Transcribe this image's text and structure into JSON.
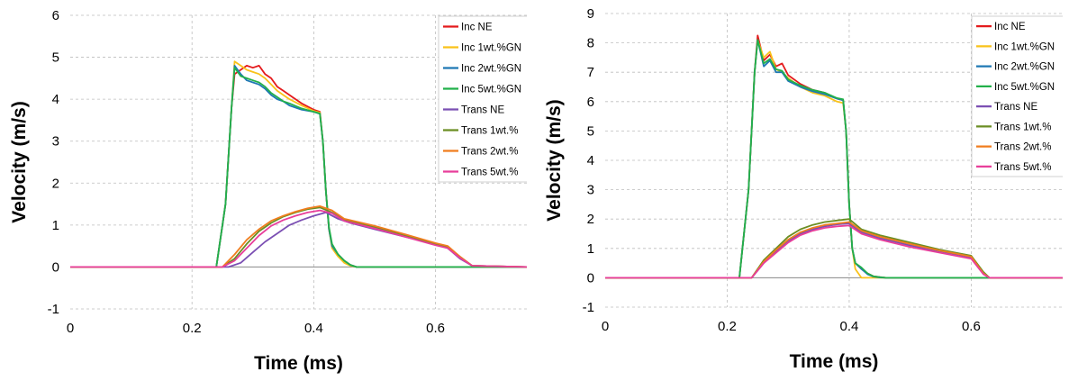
{
  "chart_data": [
    {
      "type": "line",
      "xlabel": "Time (ms)",
      "ylabel": "Velocity (m/s)",
      "xlim": [
        0,
        0.75
      ],
      "ylim": [
        -1,
        6
      ],
      "xticks": [
        0,
        0.2,
        0.4,
        0.6
      ],
      "xtick_labels": [
        "0",
        "0.2",
        "0.4",
        "0.6"
      ],
      "yticks": [
        -1,
        0,
        1,
        2,
        3,
        4,
        5,
        6
      ],
      "ytick_labels": [
        "-1",
        "0",
        "1",
        "2",
        "3",
        "4",
        "5",
        "6"
      ],
      "grid": true,
      "legend": "top-right",
      "legend_labels": [
        "Inc NE",
        "Inc 1wt.%GN",
        "Inc 2wt.%GN",
        "Inc 5wt.%GN",
        "Trans NE",
        "Trans 1wt.%",
        "Trans 2wt.%",
        "Trans 5wt.%"
      ],
      "series": [
        {
          "name": "Inc NE",
          "color": "#e41a1c",
          "x": [
            0,
            0.24,
            0.255,
            0.265,
            0.27,
            0.28,
            0.29,
            0.3,
            0.31,
            0.32,
            0.33,
            0.34,
            0.35,
            0.36,
            0.38,
            0.4,
            0.41,
            0.415,
            0.42,
            0.425,
            0.43,
            0.44,
            0.45,
            0.46,
            0.47,
            0.75
          ],
          "y": [
            0,
            0,
            1.5,
            3.8,
            4.6,
            4.7,
            4.8,
            4.75,
            4.8,
            4.6,
            4.5,
            4.3,
            4.2,
            4.1,
            3.9,
            3.75,
            3.7,
            3.0,
            1.8,
            0.9,
            0.5,
            0.3,
            0.15,
            0.05,
            0,
            0
          ]
        },
        {
          "name": "Inc 1wt.%GN",
          "color": "#f9c21a",
          "x": [
            0,
            0.24,
            0.255,
            0.265,
            0.27,
            0.28,
            0.29,
            0.3,
            0.31,
            0.32,
            0.33,
            0.34,
            0.35,
            0.36,
            0.38,
            0.4,
            0.41,
            0.415,
            0.42,
            0.425,
            0.43,
            0.44,
            0.45,
            0.46,
            0.47,
            0.75
          ],
          "y": [
            0,
            0,
            1.5,
            3.8,
            4.9,
            4.8,
            4.7,
            4.65,
            4.6,
            4.5,
            4.35,
            4.2,
            4.1,
            4.0,
            3.85,
            3.72,
            3.68,
            3.0,
            1.8,
            0.9,
            0.45,
            0.25,
            0.1,
            0.03,
            0,
            0
          ]
        },
        {
          "name": "Inc 2wt.%GN",
          "color": "#1f78b4",
          "x": [
            0,
            0.24,
            0.255,
            0.265,
            0.27,
            0.28,
            0.29,
            0.3,
            0.31,
            0.32,
            0.33,
            0.34,
            0.35,
            0.36,
            0.38,
            0.4,
            0.41,
            0.415,
            0.42,
            0.425,
            0.43,
            0.44,
            0.45,
            0.46,
            0.47,
            0.75
          ],
          "y": [
            0,
            0,
            1.5,
            3.8,
            4.8,
            4.6,
            4.45,
            4.4,
            4.35,
            4.25,
            4.1,
            4.0,
            3.95,
            3.85,
            3.75,
            3.7,
            3.65,
            3.0,
            1.8,
            0.9,
            0.5,
            0.3,
            0.15,
            0.05,
            0,
            0
          ]
        },
        {
          "name": "Inc 5wt.%GN",
          "color": "#22b04a",
          "x": [
            0,
            0.24,
            0.255,
            0.265,
            0.27,
            0.28,
            0.29,
            0.3,
            0.31,
            0.32,
            0.33,
            0.34,
            0.35,
            0.36,
            0.38,
            0.4,
            0.41,
            0.415,
            0.42,
            0.425,
            0.43,
            0.44,
            0.45,
            0.46,
            0.47,
            0.75
          ],
          "y": [
            0,
            0,
            1.5,
            3.8,
            4.75,
            4.55,
            4.5,
            4.45,
            4.4,
            4.3,
            4.15,
            4.05,
            3.95,
            3.9,
            3.78,
            3.7,
            3.66,
            3.0,
            1.8,
            0.95,
            0.55,
            0.3,
            0.15,
            0.05,
            0,
            0
          ]
        },
        {
          "name": "Trans NE",
          "color": "#7b4fb3",
          "x": [
            0,
            0.26,
            0.28,
            0.3,
            0.32,
            0.34,
            0.36,
            0.38,
            0.4,
            0.42,
            0.44,
            0.46,
            0.5,
            0.55,
            0.6,
            0.62,
            0.64,
            0.66,
            0.75
          ],
          "y": [
            0,
            0,
            0.1,
            0.35,
            0.6,
            0.8,
            1.0,
            1.12,
            1.22,
            1.3,
            1.15,
            1.05,
            0.9,
            0.72,
            0.55,
            0.45,
            0.2,
            0.03,
            0
          ]
        },
        {
          "name": "Trans 1wt.%",
          "color": "#6b8e23",
          "x": [
            0,
            0.25,
            0.27,
            0.29,
            0.31,
            0.33,
            0.35,
            0.37,
            0.39,
            0.41,
            0.43,
            0.45,
            0.5,
            0.55,
            0.6,
            0.62,
            0.64,
            0.66,
            0.75
          ],
          "y": [
            0,
            0,
            0.2,
            0.55,
            0.85,
            1.05,
            1.2,
            1.3,
            1.38,
            1.42,
            1.3,
            1.12,
            0.95,
            0.75,
            0.55,
            0.48,
            0.25,
            0.03,
            0
          ]
        },
        {
          "name": "Trans 2wt.%",
          "color": "#f07d1e",
          "x": [
            0,
            0.25,
            0.27,
            0.29,
            0.31,
            0.33,
            0.35,
            0.37,
            0.39,
            0.41,
            0.43,
            0.45,
            0.5,
            0.55,
            0.6,
            0.62,
            0.64,
            0.66,
            0.75
          ],
          "y": [
            0,
            0,
            0.3,
            0.65,
            0.9,
            1.1,
            1.22,
            1.32,
            1.4,
            1.45,
            1.35,
            1.15,
            0.98,
            0.78,
            0.57,
            0.5,
            0.25,
            0.03,
            0
          ]
        },
        {
          "name": "Trans 5wt.%",
          "color": "#e83e9a",
          "x": [
            0,
            0.25,
            0.27,
            0.29,
            0.31,
            0.33,
            0.35,
            0.37,
            0.39,
            0.41,
            0.43,
            0.45,
            0.5,
            0.55,
            0.6,
            0.62,
            0.64,
            0.66,
            0.75
          ],
          "y": [
            0,
            0,
            0.15,
            0.45,
            0.75,
            0.98,
            1.12,
            1.22,
            1.3,
            1.35,
            1.28,
            1.1,
            0.92,
            0.72,
            0.52,
            0.45,
            0.22,
            0.03,
            0
          ]
        }
      ]
    },
    {
      "type": "line",
      "xlabel": "Time (ms)",
      "ylabel": "Velocity (m/s)",
      "xlim": [
        0,
        0.75
      ],
      "ylim": [
        -1,
        9
      ],
      "xticks": [
        0,
        0.2,
        0.4,
        0.6
      ],
      "xtick_labels": [
        "0",
        "0.2",
        "0.4",
        "0.6"
      ],
      "yticks": [
        -1,
        0,
        1,
        2,
        3,
        4,
        5,
        6,
        7,
        8,
        9
      ],
      "ytick_labels": [
        "-1",
        "0",
        "1",
        "2",
        "3",
        "4",
        "5",
        "6",
        "7",
        "8",
        "9"
      ],
      "grid": true,
      "legend": "top-right",
      "legend_labels": [
        "Inc NE",
        "Inc 1wt.%GN",
        "Inc 2wt.%GN",
        "Inc 5wt.%GN",
        "Trans NE",
        "Trans 1wt.%",
        "Trans 2wt.%",
        "Trans 5wt.%"
      ],
      "series": [
        {
          "name": "Inc NE",
          "color": "#e41a1c",
          "x": [
            0,
            0.22,
            0.235,
            0.245,
            0.25,
            0.26,
            0.27,
            0.28,
            0.29,
            0.3,
            0.32,
            0.34,
            0.36,
            0.38,
            0.39,
            0.395,
            0.4,
            0.405,
            0.41,
            0.42,
            0.43,
            0.44,
            0.45,
            0.46,
            0.75
          ],
          "y": [
            0,
            0,
            3.0,
            7.0,
            8.25,
            7.4,
            7.6,
            7.2,
            7.3,
            6.9,
            6.6,
            6.4,
            6.3,
            6.1,
            6.05,
            5.0,
            2.5,
            1.0,
            0.5,
            0.3,
            0.15,
            0.05,
            0.02,
            0,
            0
          ]
        },
        {
          "name": "Inc 1wt.%GN",
          "color": "#f9c21a",
          "x": [
            0,
            0.22,
            0.235,
            0.245,
            0.25,
            0.26,
            0.27,
            0.28,
            0.29,
            0.3,
            0.32,
            0.34,
            0.36,
            0.38,
            0.39,
            0.395,
            0.4,
            0.405,
            0.41,
            0.42,
            0.43,
            0.44,
            0.45,
            0.46,
            0.75
          ],
          "y": [
            0,
            0,
            3.0,
            7.0,
            8.1,
            7.5,
            7.7,
            7.1,
            7.0,
            6.8,
            6.5,
            6.3,
            6.2,
            6.0,
            5.95,
            5.0,
            2.5,
            1.0,
            0.3,
            0,
            0,
            0,
            0,
            0,
            0
          ]
        },
        {
          "name": "Inc 2wt.%GN",
          "color": "#1f78b4",
          "x": [
            0,
            0.22,
            0.235,
            0.245,
            0.25,
            0.26,
            0.27,
            0.28,
            0.29,
            0.3,
            0.32,
            0.34,
            0.36,
            0.38,
            0.39,
            0.395,
            0.4,
            0.405,
            0.41,
            0.42,
            0.43,
            0.44,
            0.45,
            0.46,
            0.75
          ],
          "y": [
            0,
            0,
            3.0,
            7.0,
            8.1,
            7.2,
            7.4,
            7.0,
            7.0,
            6.7,
            6.5,
            6.35,
            6.25,
            6.1,
            6.05,
            5.0,
            2.5,
            1.0,
            0.5,
            0.3,
            0.12,
            0.04,
            0.01,
            0,
            0
          ]
        },
        {
          "name": "Inc 5wt.%GN",
          "color": "#22b04a",
          "x": [
            0,
            0.22,
            0.235,
            0.245,
            0.25,
            0.26,
            0.27,
            0.28,
            0.29,
            0.3,
            0.32,
            0.34,
            0.36,
            0.38,
            0.39,
            0.395,
            0.4,
            0.405,
            0.41,
            0.42,
            0.43,
            0.44,
            0.45,
            0.46,
            0.75
          ],
          "y": [
            0,
            0,
            3.0,
            7.0,
            8.1,
            7.3,
            7.45,
            7.1,
            7.05,
            6.75,
            6.55,
            6.4,
            6.3,
            6.12,
            6.08,
            5.0,
            2.5,
            1.0,
            0.5,
            0.35,
            0.15,
            0.05,
            0.02,
            0,
            0
          ]
        },
        {
          "name": "Trans NE",
          "color": "#7b4fb3",
          "x": [
            0,
            0.24,
            0.26,
            0.28,
            0.3,
            0.32,
            0.34,
            0.36,
            0.38,
            0.4,
            0.42,
            0.45,
            0.5,
            0.55,
            0.6,
            0.62,
            0.63,
            0.75
          ],
          "y": [
            0,
            0,
            0.5,
            0.9,
            1.25,
            1.5,
            1.65,
            1.75,
            1.82,
            1.85,
            1.55,
            1.35,
            1.1,
            0.9,
            0.7,
            0.15,
            0,
            0
          ]
        },
        {
          "name": "Trans 1wt.%",
          "color": "#6b8e23",
          "x": [
            0,
            0.24,
            0.26,
            0.28,
            0.3,
            0.32,
            0.34,
            0.36,
            0.38,
            0.4,
            0.42,
            0.45,
            0.5,
            0.55,
            0.6,
            0.62,
            0.63,
            0.75
          ],
          "y": [
            0,
            0,
            0.6,
            1.0,
            1.4,
            1.65,
            1.8,
            1.9,
            1.95,
            2.0,
            1.65,
            1.45,
            1.2,
            0.95,
            0.75,
            0.2,
            0,
            0
          ]
        },
        {
          "name": "Trans 2wt.%",
          "color": "#f07d1e",
          "x": [
            0,
            0.24,
            0.26,
            0.28,
            0.3,
            0.32,
            0.34,
            0.36,
            0.38,
            0.4,
            0.42,
            0.45,
            0.5,
            0.55,
            0.6,
            0.62,
            0.63,
            0.75
          ],
          "y": [
            0,
            0,
            0.55,
            0.95,
            1.3,
            1.55,
            1.7,
            1.8,
            1.85,
            1.9,
            1.6,
            1.4,
            1.15,
            0.92,
            0.72,
            0.15,
            0,
            0
          ]
        },
        {
          "name": "Trans 5wt.%",
          "color": "#e83e9a",
          "x": [
            0,
            0.24,
            0.26,
            0.28,
            0.3,
            0.32,
            0.34,
            0.36,
            0.38,
            0.4,
            0.42,
            0.45,
            0.5,
            0.55,
            0.6,
            0.62,
            0.63,
            0.75
          ],
          "y": [
            0,
            0,
            0.5,
            0.85,
            1.2,
            1.45,
            1.6,
            1.7,
            1.75,
            1.78,
            1.5,
            1.3,
            1.05,
            0.85,
            0.65,
            0.12,
            0,
            0
          ]
        }
      ]
    }
  ]
}
